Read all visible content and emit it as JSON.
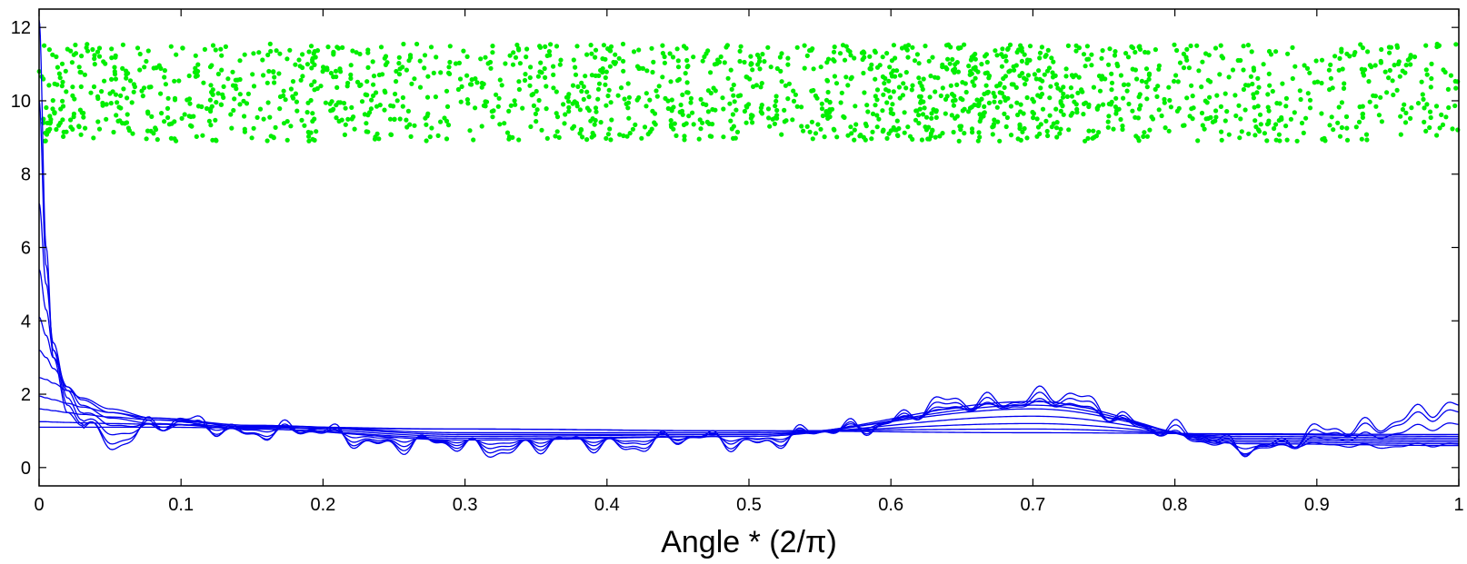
{
  "chart_data": {
    "type": "line",
    "title": "",
    "xlabel": "Angle * (2/π)",
    "ylabel": "",
    "xlim": [
      0,
      1
    ],
    "ylim": [
      -0.5,
      12.5
    ],
    "grid": false,
    "x_ticks": [
      0,
      0.1,
      0.2,
      0.3,
      0.4,
      0.5,
      0.6,
      0.7,
      0.8,
      0.9,
      1
    ],
    "x_tick_labels": [
      "0",
      "0.1",
      "0.2",
      "0.3",
      "0.4",
      "0.5",
      "0.6",
      "0.7",
      "0.8",
      "0.9",
      "1"
    ],
    "y_ticks": [
      0,
      2,
      4,
      6,
      8,
      10,
      12
    ],
    "y_tick_labels": [
      "0",
      "2",
      "4",
      "6",
      "8",
      "10",
      "12"
    ],
    "colors": {
      "scatter": "#00ee00",
      "curves": "#0000ee",
      "axes": "#000000"
    },
    "scatter": {
      "point_count": 1800,
      "x_range": [
        0,
        1
      ],
      "y_range": [
        8.9,
        11.55
      ],
      "density_profile": {
        "x": [
          0,
          0.05,
          0.1,
          0.15,
          0.2,
          0.25,
          0.3,
          0.35,
          0.4,
          0.45,
          0.5,
          0.55,
          0.6,
          0.65,
          0.7,
          0.75,
          0.8,
          0.85,
          0.9,
          0.95,
          1
        ],
        "relative_density": [
          1.0,
          0.9,
          0.9,
          0.8,
          0.85,
          0.8,
          0.75,
          0.75,
          0.95,
          0.9,
          0.8,
          0.85,
          1.0,
          1.3,
          1.45,
          1.15,
          0.65,
          0.6,
          0.6,
          0.55,
          0.7
        ]
      }
    },
    "series": [
      {
        "x": [
          0,
          0.005,
          0.01,
          0.02,
          0.03,
          0.05,
          0.08,
          0.15,
          0.3,
          0.5,
          0.7,
          0.85,
          1
        ],
        "values": [
          1.1,
          1.1,
          1.1,
          1.1,
          1.1,
          1.1,
          1.1,
          1.08,
          1.05,
          1.0,
          0.95,
          0.92,
          0.9
        ]
      },
      {
        "x": [
          0,
          0.005,
          0.01,
          0.02,
          0.03,
          0.05,
          0.08,
          0.15,
          0.3,
          0.5,
          0.7,
          0.85,
          1
        ],
        "values": [
          1.25,
          1.25,
          1.24,
          1.23,
          1.22,
          1.2,
          1.18,
          1.12,
          1.05,
          1.0,
          1.05,
          0.9,
          0.85
        ]
      },
      {
        "x": [
          0,
          0.005,
          0.01,
          0.02,
          0.03,
          0.05,
          0.08,
          0.15,
          0.3,
          0.5,
          0.7,
          0.85,
          1
        ],
        "values": [
          1.6,
          1.58,
          1.55,
          1.5,
          1.45,
          1.38,
          1.3,
          1.15,
          0.95,
          0.95,
          1.2,
          0.85,
          0.8
        ]
      },
      {
        "x": [
          0,
          0.005,
          0.01,
          0.02,
          0.03,
          0.05,
          0.08,
          0.15,
          0.3,
          0.5,
          0.7,
          0.85,
          1
        ],
        "values": [
          1.95,
          1.9,
          1.85,
          1.75,
          1.65,
          1.5,
          1.35,
          1.15,
          0.9,
          0.9,
          1.4,
          0.8,
          0.75
        ]
      },
      {
        "x": [
          0,
          0.005,
          0.01,
          0.02,
          0.03,
          0.05,
          0.08,
          0.15,
          0.3,
          0.5,
          0.7,
          0.85,
          1
        ],
        "values": [
          2.45,
          2.4,
          2.3,
          2.1,
          1.9,
          1.6,
          1.35,
          1.1,
          0.85,
          0.9,
          1.6,
          0.75,
          0.7
        ]
      },
      {
        "x": [
          0,
          0.005,
          0.01,
          0.02,
          0.03,
          0.05,
          0.08,
          0.15,
          0.3,
          0.5,
          0.7,
          0.85,
          1
        ],
        "values": [
          3.2,
          3.0,
          2.7,
          2.2,
          1.85,
          1.5,
          1.3,
          1.05,
          0.8,
          0.85,
          1.7,
          0.7,
          0.65
        ]
      },
      {
        "x": [
          0,
          0.005,
          0.01,
          0.02,
          0.03,
          0.05,
          0.08,
          0.15,
          0.3,
          0.5,
          0.7,
          0.85,
          1
        ],
        "values": [
          4.1,
          3.6,
          3.0,
          2.2,
          1.7,
          1.35,
          1.2,
          1.05,
          0.75,
          0.85,
          1.8,
          0.65,
          0.6
        ]
      },
      {
        "x": [
          0,
          0.005,
          0.01,
          0.02,
          0.03,
          0.05,
          0.08,
          0.15,
          0.3,
          0.5,
          0.7,
          0.85,
          1
        ],
        "values": [
          5.4,
          4.3,
          3.2,
          2.1,
          1.5,
          1.2,
          1.15,
          1.05,
          0.7,
          0.8,
          1.75,
          0.6,
          0.6
        ]
      },
      {
        "x": [
          0,
          0.005,
          0.01,
          0.02,
          0.03,
          0.05,
          0.08,
          0.15,
          0.3,
          0.5,
          0.7,
          0.85,
          1
        ],
        "values": [
          7.2,
          5.0,
          3.4,
          1.9,
          1.3,
          1.0,
          1.1,
          1.0,
          0.65,
          0.8,
          1.75,
          0.55,
          1.1
        ]
      },
      {
        "x": [
          0,
          0.005,
          0.01,
          0.02,
          0.03,
          0.05,
          0.08,
          0.15,
          0.3,
          0.5,
          0.7,
          0.85,
          1
        ],
        "values": [
          10.0,
          5.5,
          3.2,
          1.7,
          1.2,
          0.8,
          1.15,
          1.0,
          0.6,
          0.75,
          1.85,
          0.6,
          1.4
        ]
      },
      {
        "x": [
          0,
          0.005,
          0.01,
          0.02,
          0.03,
          0.05,
          0.08,
          0.15,
          0.3,
          0.5,
          0.7,
          0.85,
          1
        ],
        "values": [
          12.2,
          6.0,
          3.0,
          1.5,
          1.15,
          0.7,
          1.2,
          1.05,
          0.55,
          0.75,
          1.95,
          0.65,
          1.55
        ]
      }
    ],
    "noise_series_start": 7
  }
}
